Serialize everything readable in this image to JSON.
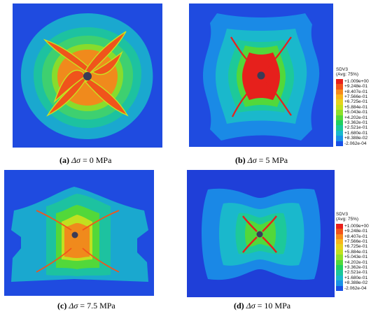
{
  "panels": [
    {
      "id": "a",
      "label": "(a)",
      "symbol": "Δσ",
      "value": "= 0 MPa"
    },
    {
      "id": "b",
      "label": "(b)",
      "symbol": "Δσ",
      "value": "= 5 MPa"
    },
    {
      "id": "c",
      "label": "(c)",
      "symbol": "Δσ",
      "value": "= 7.5 MPa"
    },
    {
      "id": "d",
      "label": "(d)",
      "symbol": "Δσ",
      "value": "= 10 MPa"
    }
  ],
  "legend": {
    "title": "SDV3",
    "subtitle": "(Avg: 75%)",
    "levels": [
      "+1.009e+00",
      "+9.248e-01",
      "+8.407e-01",
      "+7.566e-01",
      "+6.725e-01",
      "+5.884e-01",
      "+5.043e-01",
      "+4.202e-01",
      "+3.362e-01",
      "+2.521e-01",
      "+1.680e-01",
      "+8.388e-02",
      "-2.062e-04"
    ],
    "colors": [
      "#e8201c",
      "#f2541b",
      "#f78a1c",
      "#f7b51c",
      "#e6d21e",
      "#c2e01f",
      "#8fe02a",
      "#52d83a",
      "#20cf5f",
      "#1ac79a",
      "#1ab8cc",
      "#1a92e6",
      "#1850e6"
    ]
  }
}
